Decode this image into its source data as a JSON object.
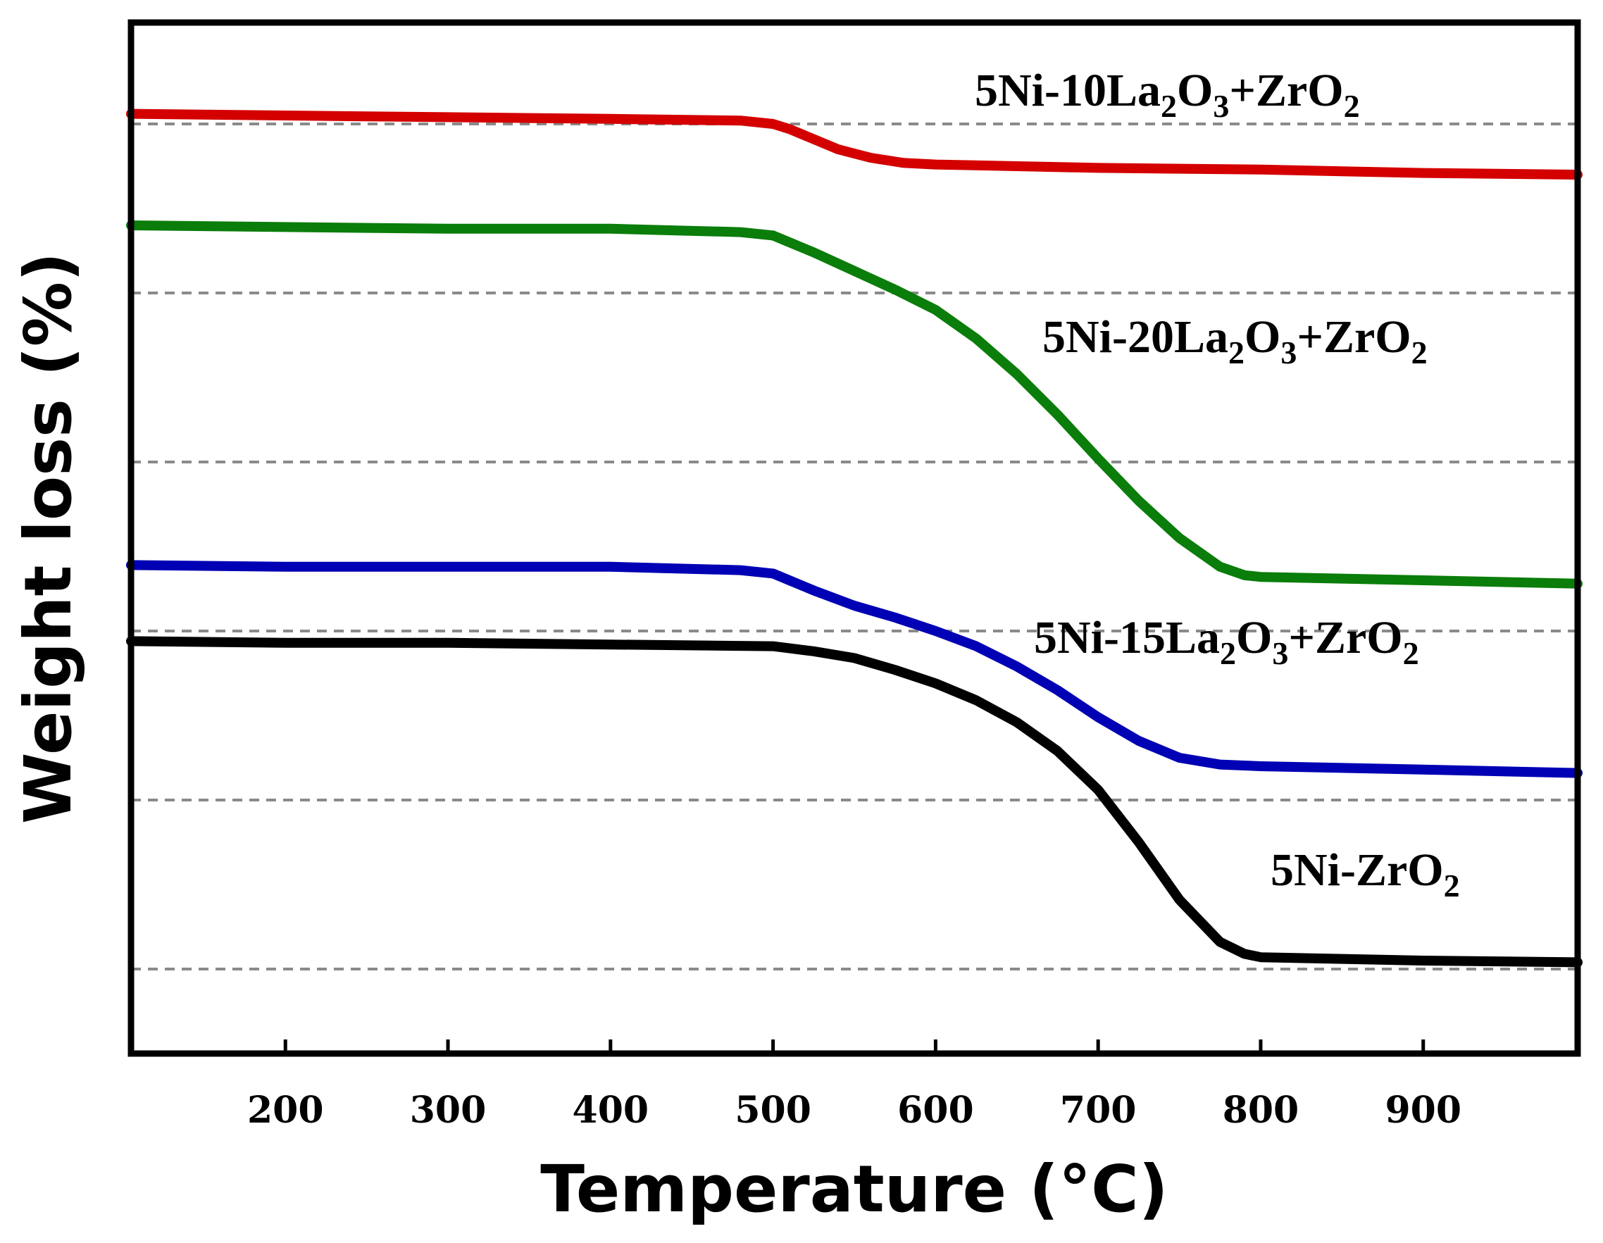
{
  "chart_data": {
    "type": "line",
    "xlabel": "Temperature (°C)",
    "ylabel": "Weight loss (%)",
    "xlim": [
      105,
      995
    ],
    "ylim": [
      0,
      6.1
    ],
    "x_ticks": [
      200,
      300,
      400,
      500,
      600,
      700,
      800,
      900
    ],
    "x_tick_labels": [
      "200",
      "300",
      "400",
      "500",
      "600",
      "700",
      "800",
      "900"
    ],
    "y_tick_labels_shown": false,
    "gridlines_y": [
      0.5,
      1.5,
      2.5,
      3.5,
      4.5,
      5.5
    ],
    "grid_style": "horizontal dashed grey",
    "series": [
      {
        "name": "5Ni-10La2O3+ZrO2",
        "label_parts": [
          [
            "5Ni-10La",
            "b"
          ],
          [
            "2",
            "sub"
          ],
          [
            "O",
            "b"
          ],
          [
            "3",
            "sub"
          ],
          [
            "+ZrO",
            "b"
          ],
          [
            "2",
            "sub"
          ]
        ],
        "color": "#d40000",
        "x": [
          105,
          200,
          300,
          400,
          480,
          500,
          510,
          520,
          540,
          560,
          580,
          600,
          650,
          700,
          800,
          900,
          995
        ],
        "y": [
          5.56,
          5.55,
          5.54,
          5.53,
          5.52,
          5.5,
          5.47,
          5.43,
          5.35,
          5.3,
          5.27,
          5.26,
          5.25,
          5.24,
          5.23,
          5.21,
          5.2
        ]
      },
      {
        "name": "5Ni-20La2O3+ZrO2",
        "label_parts": [
          [
            "5Ni-20La",
            "b"
          ],
          [
            "2",
            "sub"
          ],
          [
            "O",
            "b"
          ],
          [
            "3",
            "sub"
          ],
          [
            "+ZrO",
            "b"
          ],
          [
            "2",
            "sub"
          ]
        ],
        "color": "#0a7d0a",
        "x": [
          105,
          200,
          300,
          400,
          480,
          500,
          510,
          525,
          550,
          575,
          600,
          625,
          650,
          675,
          700,
          725,
          750,
          775,
          790,
          800,
          850,
          900,
          995
        ],
        "y": [
          4.9,
          4.89,
          4.88,
          4.88,
          4.86,
          4.84,
          4.8,
          4.74,
          4.63,
          4.52,
          4.4,
          4.23,
          4.02,
          3.78,
          3.52,
          3.27,
          3.05,
          2.88,
          2.83,
          2.82,
          2.81,
          2.8,
          2.78
        ]
      },
      {
        "name": "5Ni-15La2O3+ZrO2",
        "label_parts": [
          [
            "5Ni-15La",
            "b"
          ],
          [
            "2",
            "sub"
          ],
          [
            "O",
            "b"
          ],
          [
            "3",
            "sub"
          ],
          [
            "+ZrO",
            "b"
          ],
          [
            "2",
            "sub"
          ]
        ],
        "color": "#0000b4",
        "x": [
          105,
          200,
          300,
          400,
          480,
          500,
          510,
          525,
          550,
          575,
          600,
          625,
          650,
          675,
          700,
          725,
          750,
          775,
          800,
          850,
          900,
          995
        ],
        "y": [
          2.89,
          2.88,
          2.88,
          2.88,
          2.86,
          2.84,
          2.8,
          2.74,
          2.65,
          2.58,
          2.5,
          2.41,
          2.29,
          2.15,
          1.99,
          1.85,
          1.75,
          1.71,
          1.7,
          1.69,
          1.68,
          1.66
        ]
      },
      {
        "name": "5Ni-ZrO2",
        "label_parts": [
          [
            "5Ni-ZrO",
            "b"
          ],
          [
            "2",
            "sub"
          ]
        ],
        "color": "#000000",
        "x": [
          105,
          200,
          300,
          400,
          500,
          525,
          550,
          575,
          600,
          625,
          650,
          675,
          700,
          725,
          750,
          775,
          790,
          800,
          850,
          900,
          995
        ],
        "y": [
          2.44,
          2.43,
          2.43,
          2.42,
          2.41,
          2.38,
          2.34,
          2.27,
          2.19,
          2.09,
          1.96,
          1.79,
          1.56,
          1.25,
          0.91,
          0.66,
          0.59,
          0.57,
          0.56,
          0.55,
          0.54
        ]
      }
    ]
  }
}
